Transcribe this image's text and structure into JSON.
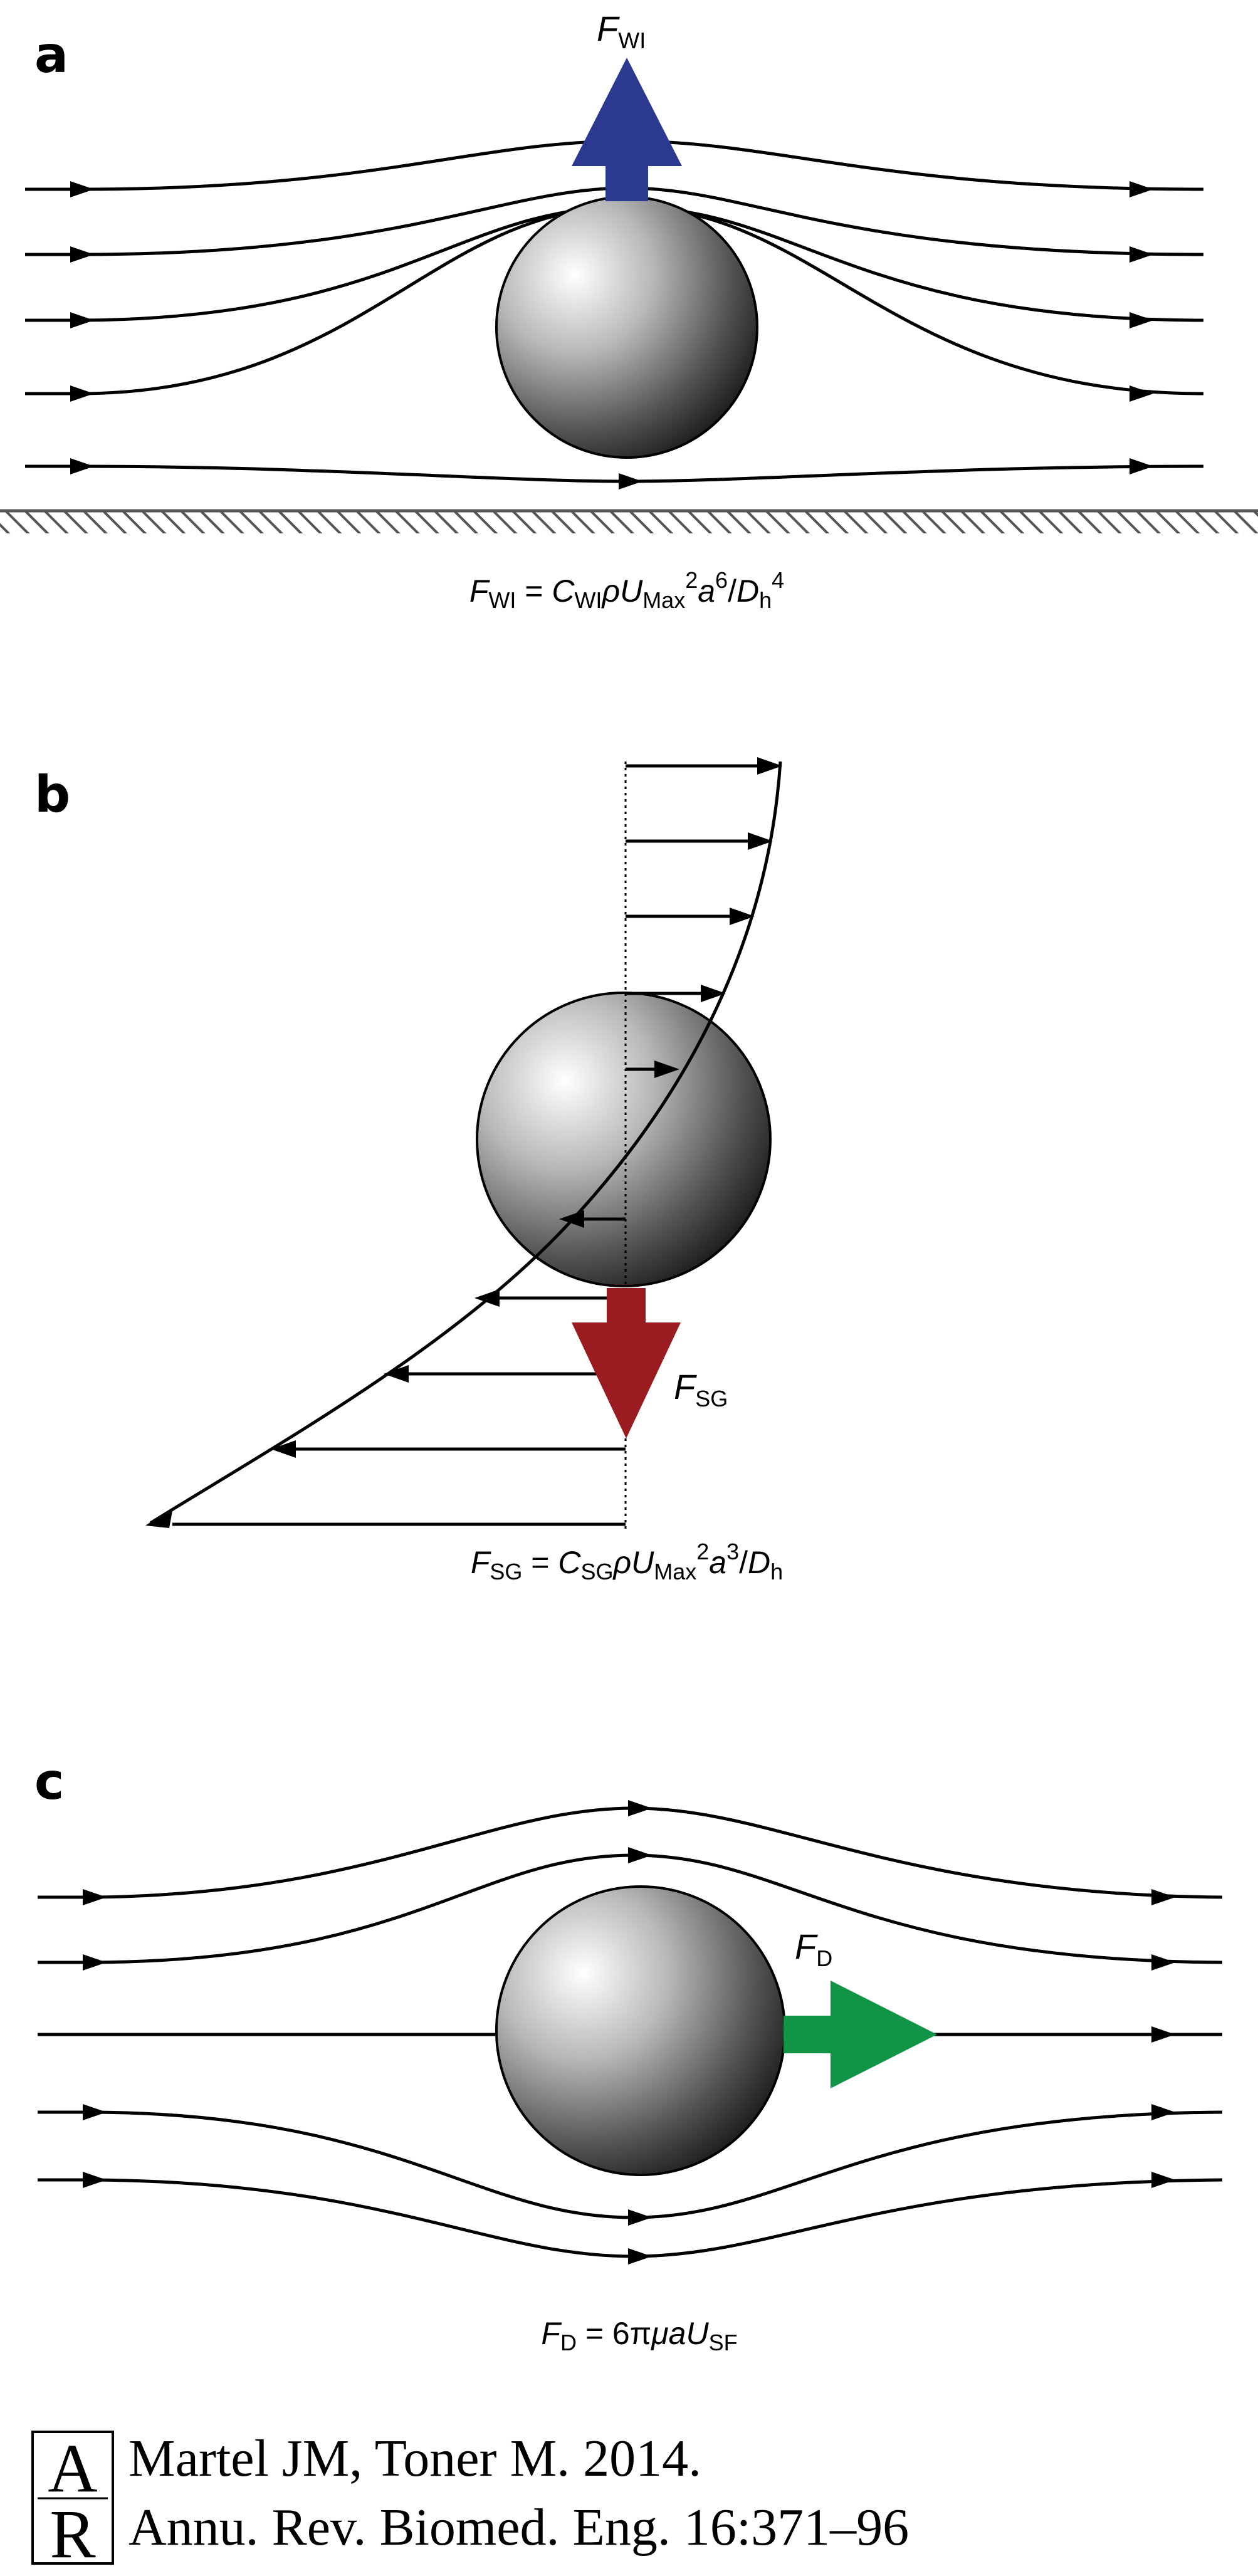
{
  "panels": {
    "a": {
      "letter": "a",
      "force_label": {
        "main": "F",
        "sub": "WI"
      },
      "equation": {
        "lhs": "F",
        "lhs_sub": "WI",
        "eq": " = ",
        "c": "C",
        "c_sub": "WI",
        "rho": "ρ",
        "u": "U",
        "u_sub": "Max",
        "u_sup": "2",
        "a": "a",
        "a_sup": "6",
        "slash": "/",
        "d": "D",
        "d_sub": "h",
        "d_sup": "4"
      },
      "force_color": "#2b3990"
    },
    "b": {
      "letter": "b",
      "force_label": {
        "main": "F",
        "sub": "SG"
      },
      "equation": {
        "lhs": "F",
        "lhs_sub": "SG",
        "eq": " = ",
        "c": "C",
        "c_sub": "SG",
        "rho": "ρ",
        "u": "U",
        "u_sub": "Max",
        "u_sup": "2",
        "a": "a",
        "a_sup": "3",
        "slash": "/",
        "d": "D",
        "d_sub": "h"
      },
      "force_color": "#9b1c20"
    },
    "c": {
      "letter": "c",
      "force_label": {
        "main": "F",
        "sub": "D"
      },
      "equation": {
        "lhs": "F",
        "lhs_sub": "D",
        "eq": " = 6π",
        "mu": "μ",
        "a": "a",
        "u": "U",
        "u_sub": "SF"
      },
      "force_color": "#129447"
    }
  },
  "citation": {
    "logo_letters": "AR",
    "line1": "Martel JM, Toner M. 2014.",
    "line2": "Annu. Rev. Biomed. Eng. 16:371–96"
  }
}
